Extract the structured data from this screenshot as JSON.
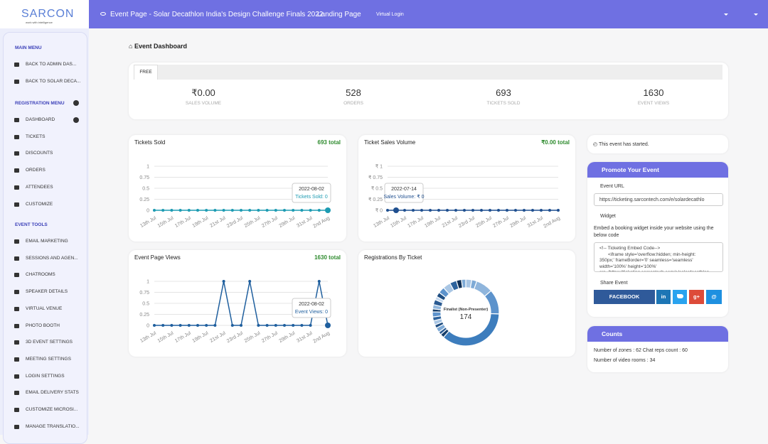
{
  "logo": {
    "name": "SARCON",
    "tagline": "work with intelligence"
  },
  "topbar": {
    "event": "Event Page - Solar Decathlon India's Design Challenge Finals 2022",
    "landing": "Landing Page",
    "virtual": "Virtual Login"
  },
  "sidebar": {
    "sections": [
      {
        "title": "MAIN MENU",
        "items": [
          "BACK TO ADMIN DAS...",
          "BACK TO SOLAR DECA..."
        ]
      },
      {
        "title": "REGISTRATION MENU",
        "items": [
          "DASHBOARD",
          "TICKETS",
          "DISCOUNTS",
          "ORDERS",
          "ATTENDEES",
          "CUSTOMIZE"
        ]
      },
      {
        "title": "EVENT TOOLS",
        "items": [
          "EMAIL MARKETING",
          "SESSIONS AND AGEN...",
          "CHATROOMS",
          "SPEAKER DETAILS",
          "VIRTUAL VENUE",
          "PHOTO BOOTH",
          "3D EVENT SETTINGS",
          "MEETING SETTINGS",
          "LOGIN SETTINGS",
          "EMAIL DELIVERY STATS",
          "CUSTOMIZE MICROSI...",
          "MANAGE TRANSLATIO..."
        ]
      }
    ]
  },
  "page_title": "Event Dashboard",
  "stats": {
    "tab": "FREE",
    "items": [
      {
        "value": "₹0.00",
        "label": "SALES VOLUME"
      },
      {
        "value": 528,
        "label": "ORDERS"
      },
      {
        "value": 693,
        "label": "TICKETS SOLD"
      },
      {
        "value": 1630,
        "label": "EVENT VIEWS"
      }
    ]
  },
  "chart_data": [
    {
      "type": "line",
      "title": "Tickets Sold",
      "total": "693 total",
      "color": "#1d9bb2",
      "categories": [
        "13th Jul",
        null,
        "15th Jul",
        null,
        "17th Jul",
        null,
        "19th Jul",
        null,
        "21st Jul",
        null,
        "23rd Jul",
        null,
        "25th Jul",
        null,
        "27th Jul",
        null,
        "29th Jul",
        null,
        "31st Jul",
        null,
        "2nd Aug"
      ],
      "values": [
        0,
        0,
        0,
        0,
        0,
        0,
        0,
        0,
        0,
        0,
        0,
        0,
        0,
        0,
        0,
        0,
        0,
        0,
        0,
        0,
        0
      ],
      "ylim": [
        0,
        1
      ],
      "yticks": [
        0,
        0.25,
        0.5,
        0.75,
        1
      ],
      "grid": true,
      "tooltip": [
        "2022-08-02",
        "Tickets Sold: 0"
      ]
    },
    {
      "type": "line",
      "title": "Ticket Sales Volume",
      "total": "₹0.00 total",
      "color": "#1f4f8f",
      "categories": [
        "13th Jul",
        null,
        "15th Jul",
        null,
        "17th Jul",
        null,
        "19th Jul",
        null,
        "21st Jul",
        null,
        "23rd Jul",
        null,
        "25th Jul",
        null,
        "27th Jul",
        null,
        "29th Jul",
        null,
        "31st Jul",
        null,
        "2nd Aug"
      ],
      "values": [
        0,
        0,
        0,
        0,
        0,
        0,
        0,
        0,
        0,
        0,
        0,
        0,
        0,
        0,
        0,
        0,
        0,
        0,
        0,
        0,
        0
      ],
      "ylim": [
        0,
        1
      ],
      "yticks": [
        {
          "value": 0,
          "label": "₹ 0"
        },
        {
          "value": 0.25,
          "label": "₹ 0.25"
        },
        {
          "value": 0.5,
          "label": "₹ 0.5"
        },
        {
          "value": 0.75,
          "label": "₹ 0.75"
        },
        {
          "value": 1,
          "label": "₹ 1"
        }
      ],
      "grid": true,
      "tooltip": [
        "2022-07-14",
        "Sales Volume: ₹ 0"
      ]
    },
    {
      "type": "line",
      "title": "Event Page Views",
      "total": "1630 total",
      "color": "#1f5f9e",
      "categories": [
        "13th Jul",
        null,
        "15th Jul",
        null,
        "17th Jul",
        null,
        "19th Jul",
        null,
        "21st Jul",
        null,
        "23rd Jul",
        null,
        "25th Jul",
        null,
        "27th Jul",
        null,
        "29th Jul",
        null,
        "31st Jul",
        null,
        "2nd Aug"
      ],
      "values": [
        0,
        0,
        0,
        0,
        0,
        0,
        0,
        0,
        1,
        0,
        0,
        1,
        0,
        0,
        0,
        0,
        0,
        0,
        0,
        1,
        0
      ],
      "ylim": [
        0,
        1
      ],
      "yticks": [
        0,
        0.25,
        0.5,
        0.75,
        1
      ],
      "grid": true,
      "tooltip": [
        "2022-08-02",
        "Event Views: 0"
      ]
    },
    {
      "type": "doughnut",
      "title": "Registrations By Ticket",
      "categories": [
        null,
        null,
        null,
        null,
        "Finalist (Non-Presenter)",
        null,
        null,
        null,
        null,
        null,
        null,
        null,
        null,
        null,
        null,
        null,
        null,
        null,
        null,
        null,
        null,
        null
      ],
      "values": [
        14,
        12,
        40,
        58,
        174,
        9,
        7,
        11,
        8,
        10,
        9,
        12,
        7,
        10,
        12,
        8,
        11,
        15,
        18,
        16,
        12,
        10
      ],
      "colors": [
        "#a9c6e4",
        "#7eaad6",
        "#8fb5dc",
        "#5d93cc",
        "#3d7dbd",
        "#173f6b",
        "#2a5a91",
        "#7eaad6",
        "#1f4e82",
        "#a9c6e4",
        "#2d639d",
        "#5d93cc",
        "#173f6b",
        "#8fb5dc",
        "#2a5a91",
        "#c4d8ee",
        "#1f4e82",
        "#5d93cc",
        "#a9c6e4",
        "#2d639d",
        "#0f2f55",
        "#7eaad6"
      ]
    }
  ],
  "status": "This event has started.",
  "promote": {
    "title": "Promote Your Event",
    "url_label": "Event URL",
    "url": "https://ticketing.sarcontech.com/e/solardecathlo",
    "widget_label": "Widget",
    "widget_desc": "Embed a booking widget inside your website using the below code",
    "code": [
      "<!-- Ticketing Embed Code-->",
      "<iframe style='overflow:hidden; min-height:",
      "350px;' frameBorder='0' seamless='seamless'",
      "width='100%' height='100%'",
      "src='https://ticketing.sarcontech.com/e/solardecathlon"
    ],
    "share_label": "Share Event",
    "buttons": [
      "FACEBOOK",
      "in",
      "g+",
      "@"
    ]
  },
  "counts": {
    "title": "Counts",
    "lines": [
      "Number of zones : 62 Chat reps count : 60",
      "Number of video rooms : 34"
    ]
  }
}
